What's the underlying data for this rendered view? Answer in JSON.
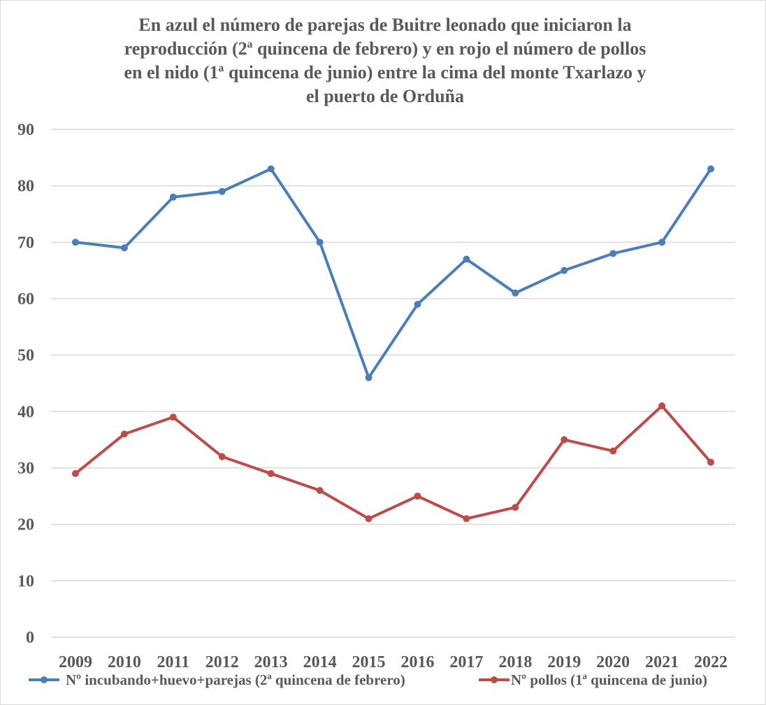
{
  "chart_data": {
    "type": "line",
    "title_lines": [
      "En azul el número de parejas de Buitre leonado que iniciaron la",
      "reproducción  (2ª quincena de febrero) y en rojo el número de pollos",
      "en el nido (1ª quincena de junio) entre la cima del monte Txarlazo  y",
      "el puerto de Orduña"
    ],
    "categories": [
      "2009",
      "2010",
      "2011",
      "2012",
      "2013",
      "2014",
      "2015",
      "2016",
      "2017",
      "2018",
      "2019",
      "2020",
      "2021",
      "2022"
    ],
    "series": [
      {
        "name": "Nº incubando+huevo+parejas (2ª quincena de febrero)",
        "color": "#4a7ebb",
        "values": [
          70,
          69,
          78,
          79,
          83,
          70,
          46,
          59,
          67,
          61,
          65,
          68,
          70,
          83
        ]
      },
      {
        "name": "Nº pollos (1ª quincena de junio)",
        "color": "#be4b48",
        "values": [
          29,
          36,
          39,
          32,
          29,
          26,
          21,
          25,
          21,
          23,
          35,
          33,
          41,
          31
        ]
      }
    ],
    "ylim": [
      0,
      90
    ],
    "yticks": [
      0,
      10,
      20,
      30,
      40,
      50,
      60,
      70,
      80,
      90
    ],
    "grid": true,
    "gridline_color": "#d9d9d9",
    "legend_position": "bottom"
  }
}
